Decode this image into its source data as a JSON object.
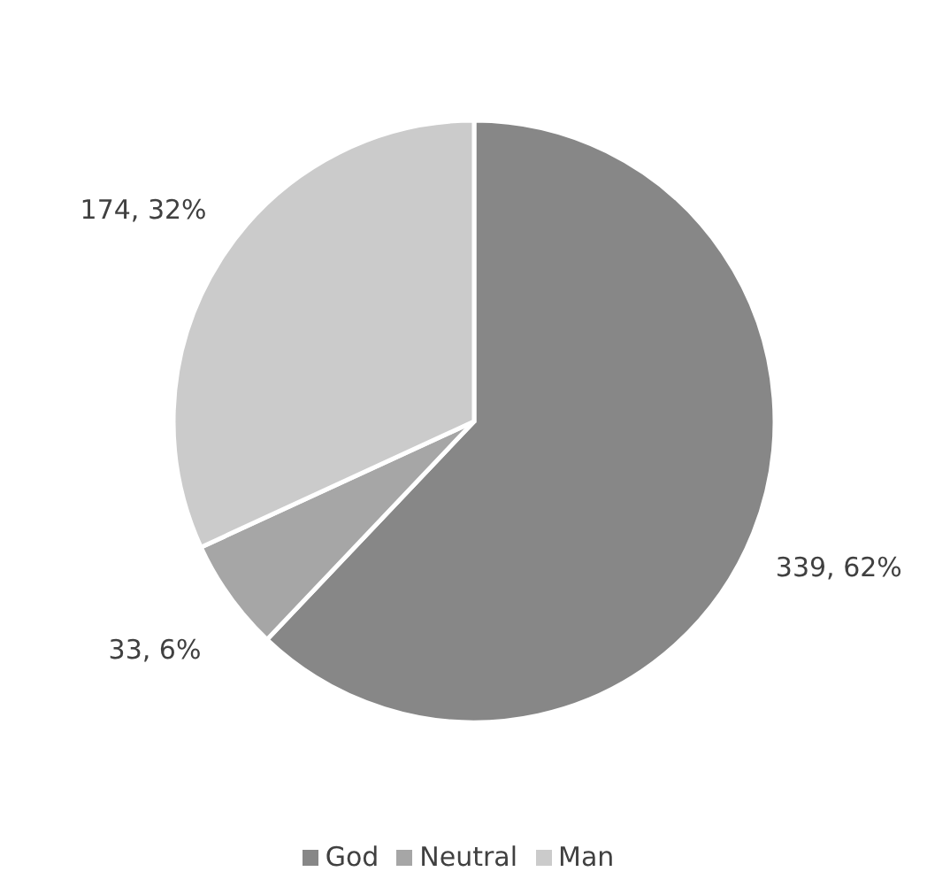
{
  "chart_data": {
    "type": "pie",
    "categories": [
      "God",
      "Neutral",
      "Man"
    ],
    "values": [
      339,
      33,
      174
    ],
    "colors": [
      "#878787",
      "#a6a6a6",
      "#cbcbcb"
    ],
    "value_labels": [
      "339, 62%",
      "33, 6%",
      "174, 32%"
    ],
    "legend": "bottom"
  }
}
